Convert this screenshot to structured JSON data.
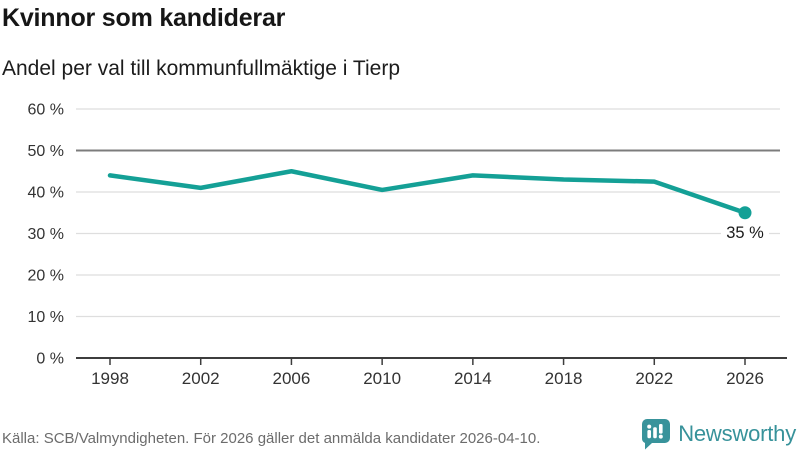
{
  "header": {
    "title": "Kvinnor som kandiderar",
    "subtitle": "Andel per val till kommunfullmäktige i Tierp"
  },
  "chart_data": {
    "type": "line",
    "title": "Kvinnor som kandiderar",
    "subtitle": "Andel per val till kommunfullmäktige i Tierp",
    "x": [
      1998,
      2002,
      2006,
      2010,
      2014,
      2018,
      2022,
      2026
    ],
    "values": [
      44,
      41,
      45,
      40.5,
      44,
      43,
      42.5,
      35
    ],
    "ylim": [
      0,
      60
    ],
    "yticks": [
      0,
      10,
      20,
      30,
      40,
      50,
      60
    ],
    "ytick_suffix": " %",
    "benchmark_line": 50,
    "grid": "horizontal",
    "legend": "none",
    "marker": "last-point-only",
    "last_point_label": "35 %",
    "line_color": "#14a096",
    "gridline_color": "#dedede",
    "benchmark_color": "#7c7c7c",
    "axis_color": "#3d3d3d",
    "tick_label_color": "#333333",
    "annotation_color": "#1a1a1a"
  },
  "footer": {
    "source": "Källa: SCB/Valmyndigheten. För 2026 gäller det anmälda kandidater 2026-04-10.",
    "brand": "Newsworthy",
    "brand_color": "#37929a"
  }
}
